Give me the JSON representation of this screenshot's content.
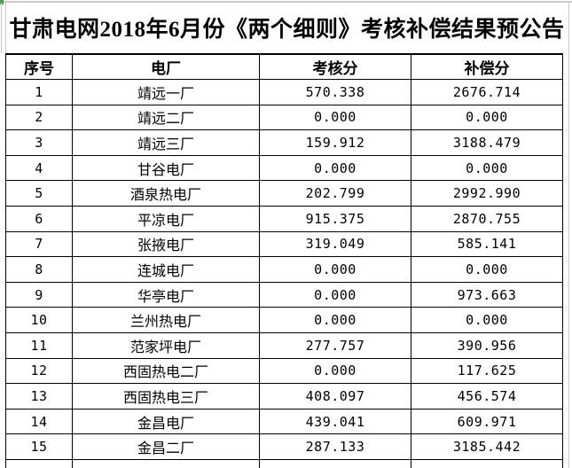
{
  "page": {
    "title": "甘肃电网2018年6月份《两个细则》考核补偿结果预公告"
  },
  "table": {
    "columns": [
      {
        "key": "no",
        "label": "序号"
      },
      {
        "key": "plant",
        "label": "电厂"
      },
      {
        "key": "kaohe",
        "label": "考核分"
      },
      {
        "key": "buchang",
        "label": "补偿分"
      }
    ],
    "rows": [
      {
        "no": "1",
        "plant": "靖远一厂",
        "kaohe": "570.338",
        "buchang": "2676.714"
      },
      {
        "no": "2",
        "plant": "靖远二厂",
        "kaohe": "0.000",
        "buchang": "0.000"
      },
      {
        "no": "3",
        "plant": "靖远三厂",
        "kaohe": "159.912",
        "buchang": "3188.479"
      },
      {
        "no": "4",
        "plant": "甘谷电厂",
        "kaohe": "0.000",
        "buchang": "0.000"
      },
      {
        "no": "5",
        "plant": "酒泉热电厂",
        "kaohe": "202.799",
        "buchang": "2992.990"
      },
      {
        "no": "6",
        "plant": "平凉电厂",
        "kaohe": "915.375",
        "buchang": "2870.755"
      },
      {
        "no": "7",
        "plant": "张掖电厂",
        "kaohe": "319.049",
        "buchang": "585.141"
      },
      {
        "no": "8",
        "plant": "连城电厂",
        "kaohe": "0.000",
        "buchang": "0.000"
      },
      {
        "no": "9",
        "plant": "华亭电厂",
        "kaohe": "0.000",
        "buchang": "973.663"
      },
      {
        "no": "10",
        "plant": "兰州热电厂",
        "kaohe": "0.000",
        "buchang": "0.000"
      },
      {
        "no": "11",
        "plant": "范家坪电厂",
        "kaohe": "277.757",
        "buchang": "390.956"
      },
      {
        "no": "12",
        "plant": "西固热电二厂",
        "kaohe": "0.000",
        "buchang": "117.625"
      },
      {
        "no": "13",
        "plant": "西固热电三厂",
        "kaohe": "408.097",
        "buchang": "456.574"
      },
      {
        "no": "14",
        "plant": "金昌电厂",
        "kaohe": "439.041",
        "buchang": "609.971"
      },
      {
        "no": "15",
        "plant": "金昌二厂",
        "kaohe": "287.133",
        "buchang": "3185.442"
      }
    ],
    "partial_row_visible": true
  },
  "colors": {
    "accent_green": "#4f9e4f",
    "gridline": "#c9c9c9",
    "border": "#000000",
    "text": "#000000"
  }
}
